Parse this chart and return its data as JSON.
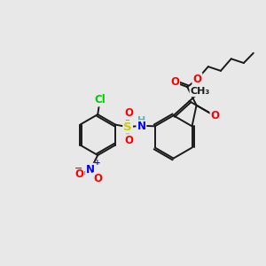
{
  "bg_color": "#e8e8e8",
  "bond_color": "#1a1a1a",
  "bond_width": 1.4,
  "atom_colors": {
    "C": "#1a1a1a",
    "H": "#6aacb8",
    "N": "#0000ff",
    "O": "#ff0000",
    "S": "#cccc00",
    "Cl": "#00cc00"
  },
  "fs": 8.5
}
